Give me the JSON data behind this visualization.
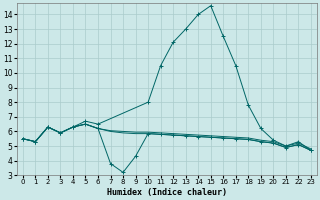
{
  "xlabel": "Humidex (Indice chaleur)",
  "bg_color": "#cce8e8",
  "grid_color": "#aacccc",
  "line_color": "#006666",
  "x_values": [
    0,
    1,
    2,
    3,
    4,
    5,
    6,
    7,
    8,
    9,
    10,
    11,
    12,
    13,
    14,
    15,
    16,
    17,
    18,
    19,
    20,
    21,
    22,
    23
  ],
  "line1": [
    5.5,
    5.3,
    6.3,
    5.9,
    6.3,
    6.7,
    6.5,
    null,
    null,
    null,
    8.0,
    10.5,
    12.1,
    13.0,
    14.0,
    14.6,
    12.5,
    10.5,
    7.8,
    6.2,
    5.4,
    5.0,
    5.3,
    4.7
  ],
  "line2": [
    5.5,
    5.3,
    6.3,
    5.9,
    6.3,
    6.5,
    6.2,
    6.0,
    5.9,
    5.85,
    5.85,
    5.8,
    5.75,
    5.7,
    5.65,
    5.6,
    5.55,
    5.5,
    5.45,
    5.3,
    5.2,
    4.9,
    5.1,
    4.7
  ],
  "line3": [
    5.5,
    5.3,
    6.3,
    5.9,
    6.3,
    6.5,
    6.2,
    6.05,
    6.0,
    5.95,
    5.95,
    5.9,
    5.85,
    5.8,
    5.75,
    5.7,
    5.65,
    5.6,
    5.55,
    5.4,
    5.3,
    5.0,
    5.2,
    4.8
  ],
  "line4": [
    5.5,
    5.3,
    6.3,
    5.9,
    6.3,
    6.5,
    6.2,
    3.8,
    3.2,
    4.3,
    5.85,
    5.8,
    5.75,
    5.7,
    5.65,
    5.6,
    5.55,
    5.5,
    5.45,
    5.3,
    5.2,
    4.9,
    5.1,
    4.7
  ],
  "ylim": [
    3,
    14.8
  ],
  "yticks": [
    3,
    4,
    5,
    6,
    7,
    8,
    9,
    10,
    11,
    12,
    13,
    14
  ],
  "xlim": [
    -0.5,
    23.5
  ]
}
